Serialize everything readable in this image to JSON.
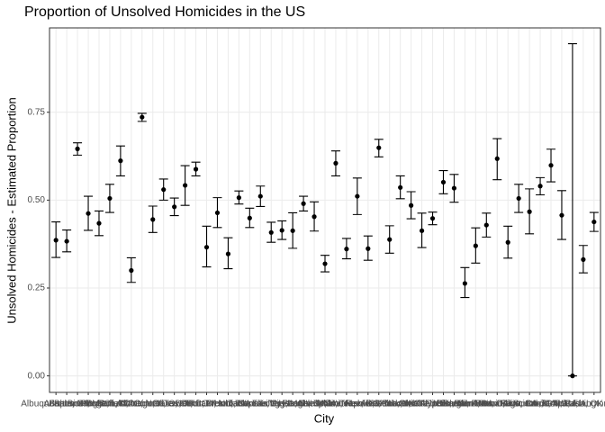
{
  "chart_data": {
    "type": "errorbar-point",
    "title": "Proportion of Unsolved Homicides in the US",
    "x_label": "City",
    "y_label": "Unsolved Homicides - Estimated Proportion",
    "categories": [
      "Albuquerque, NM",
      "Atlanta, GA",
      "Baltimore, MD",
      "Baton Rouge, LA",
      "Birmingham, AL",
      "Boston, MA",
      "Buffalo, NY",
      "Charlotte, NC",
      "Chicago, IL",
      "Cincinnati, OH",
      "Columbus, OH",
      "Dallas, TX",
      "Denver, CO",
      "Detroit, MI",
      "Durham, NC",
      "Fort Worth, TX",
      "Fresno, CA",
      "Houston, TX",
      "Indianapolis, IN",
      "Jacksonville, FL",
      "Kansas City, MO",
      "Las Vegas, NV",
      "Long Beach, CA",
      "Los Angeles, CA",
      "Louisville, KY",
      "Memphis, TN",
      "Miami, FL",
      "Milwaukee, wI",
      "Minneapolis, MN",
      "Nashville, TN",
      "New Orleans, LA",
      "New York, NY",
      "Oakland, CA",
      "Oklahoma City, OK",
      "Omaha, NE",
      "Philadelphia, PA",
      "Phoenix, AZ",
      "Pittsburgh, PA",
      "Richmond, VA",
      "Sacramento, CA",
      "San Antonio, TX",
      "San Bernardino, CA",
      "San Diego, CA",
      "San Francisco, CA",
      "Savannah, GA",
      "St. Louis, MO",
      "Stockton, CA",
      "Tampa, FL",
      "Tulsa, AL",
      "Tulsa, OK",
      "Washington, DC"
    ],
    "values": [
      0.386,
      0.383,
      0.646,
      0.462,
      0.434,
      0.505,
      0.612,
      0.3,
      0.736,
      0.445,
      0.53,
      0.481,
      0.542,
      0.588,
      0.366,
      0.464,
      0.347,
      0.507,
      0.449,
      0.511,
      0.408,
      0.414,
      0.413,
      0.49,
      0.453,
      0.319,
      0.605,
      0.361,
      0.511,
      0.362,
      0.649,
      0.388,
      0.536,
      0.485,
      0.413,
      0.448,
      0.551,
      0.534,
      0.263,
      0.37,
      0.429,
      0.618,
      0.38,
      0.505,
      0.467,
      0.54,
      0.599,
      0.457,
      0,
      0.331,
      0.438
    ],
    "lower": [
      0.337,
      0.353,
      0.628,
      0.414,
      0.399,
      0.465,
      0.569,
      0.266,
      0.724,
      0.408,
      0.5,
      0.456,
      0.485,
      0.569,
      0.31,
      0.422,
      0.305,
      0.489,
      0.422,
      0.482,
      0.38,
      0.388,
      0.363,
      0.469,
      0.412,
      0.296,
      0.569,
      0.333,
      0.459,
      0.329,
      0.623,
      0.349,
      0.504,
      0.447,
      0.365,
      0.43,
      0.518,
      0.494,
      0.223,
      0.321,
      0.395,
      0.558,
      0.335,
      0.465,
      0.404,
      0.515,
      0.552,
      0.388,
      0,
      0.293,
      0.411
    ],
    "upper": [
      0.438,
      0.415,
      0.663,
      0.511,
      0.469,
      0.545,
      0.654,
      0.336,
      0.747,
      0.483,
      0.56,
      0.506,
      0.598,
      0.608,
      0.426,
      0.507,
      0.393,
      0.526,
      0.477,
      0.54,
      0.437,
      0.441,
      0.464,
      0.511,
      0.495,
      0.343,
      0.64,
      0.391,
      0.563,
      0.398,
      0.673,
      0.427,
      0.569,
      0.524,
      0.463,
      0.466,
      0.584,
      0.573,
      0.308,
      0.421,
      0.463,
      0.675,
      0.426,
      0.545,
      0.532,
      0.564,
      0.645,
      0.527,
      0.945,
      0.371,
      0.465
    ],
    "color": "#000000",
    "ylim": [
      -0.047,
      0.99
    ],
    "yticks": [
      {
        "value": 0,
        "label": "0.00"
      },
      {
        "value": 0.25,
        "label": "0.25"
      },
      {
        "value": 0.5,
        "label": "0.50"
      },
      {
        "value": 0.75,
        "label": "0.75"
      }
    ],
    "grid": true
  }
}
